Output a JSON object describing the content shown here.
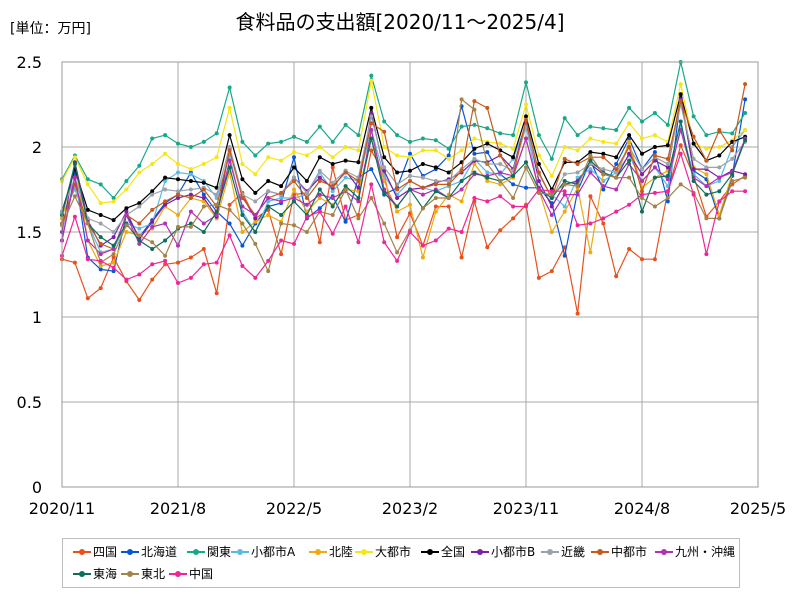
{
  "header": {
    "unit": "[単位：万円]",
    "title": "食料品の支出額[2020/11～2025/4]"
  },
  "chart_data": {
    "type": "line",
    "title": "食料品の支出額[2020/11～2025/4]",
    "ylabel": "[単位：万円]",
    "xlabel": "",
    "ylim": [
      0,
      2.5
    ],
    "yticks": [
      "0",
      "0.5",
      "1",
      "1.5",
      "2",
      "2.5"
    ],
    "x_tick_labels": [
      "2020/11",
      "2021/8",
      "2022/5",
      "2023/2",
      "2023/11",
      "2024/8",
      "2025/5"
    ],
    "grid": true,
    "legend_position": "bottom",
    "x": [
      "2020/11",
      "2020/12",
      "2021/1",
      "2021/2",
      "2021/3",
      "2021/4",
      "2021/5",
      "2021/6",
      "2021/7",
      "2021/8",
      "2021/9",
      "2021/10",
      "2021/11",
      "2021/12",
      "2022/1",
      "2022/2",
      "2022/3",
      "2022/4",
      "2022/5",
      "2022/6",
      "2022/7",
      "2022/8",
      "2022/9",
      "2022/10",
      "2022/11",
      "2022/12",
      "2023/1",
      "2023/2",
      "2023/3",
      "2023/4",
      "2023/5",
      "2023/6",
      "2023/7",
      "2023/8",
      "2023/9",
      "2023/10",
      "2023/11",
      "2023/12",
      "2024/1",
      "2024/2",
      "2024/3",
      "2024/4",
      "2024/5",
      "2024/6",
      "2024/7",
      "2024/8",
      "2024/9",
      "2024/10",
      "2024/11",
      "2024/12",
      "2025/1",
      "2025/2",
      "2025/3",
      "2025/4"
    ],
    "series": [
      {
        "name": "四国",
        "color": "#e8501e",
        "values": [
          1.34,
          1.32,
          1.11,
          1.17,
          1.35,
          1.21,
          1.1,
          1.22,
          1.31,
          1.32,
          1.35,
          1.4,
          1.14,
          1.66,
          1.73,
          1.58,
          1.63,
          1.37,
          1.72,
          1.73,
          1.44,
          1.88,
          1.57,
          1.6,
          1.98,
          1.84,
          1.47,
          1.61,
          1.42,
          1.65,
          1.65,
          1.35,
          1.68,
          1.41,
          1.51,
          1.58,
          1.66,
          1.23,
          1.27,
          1.41,
          1.02,
          1.71,
          1.55,
          1.24,
          1.4,
          1.34,
          1.34,
          1.74,
          2.01,
          1.83,
          1.59,
          1.68,
          1.78,
          1.83
        ]
      },
      {
        "name": "北海道",
        "color": "#0a55d6",
        "values": [
          1.45,
          1.84,
          1.35,
          1.28,
          1.27,
          1.6,
          1.47,
          1.57,
          1.67,
          1.72,
          1.85,
          1.72,
          1.62,
          1.55,
          1.42,
          1.55,
          1.65,
          1.67,
          1.94,
          1.58,
          1.64,
          1.71,
          1.56,
          1.82,
          1.87,
          1.72,
          1.76,
          1.96,
          1.83,
          1.87,
          1.95,
          2.24,
          1.96,
          1.97,
          1.84,
          1.78,
          1.76,
          1.76,
          1.67,
          1.36,
          1.74,
          1.92,
          1.75,
          1.9,
          2.05,
          1.87,
          1.97,
          1.68,
          2.29,
          1.86,
          1.81,
          1.58,
          1.83,
          2.28
        ]
      },
      {
        "name": "関東",
        "color": "#17a889",
        "values": [
          1.81,
          1.95,
          1.81,
          1.78,
          1.7,
          1.8,
          1.89,
          2.05,
          2.07,
          2.02,
          2.0,
          2.03,
          2.08,
          2.35,
          2.03,
          1.95,
          2.02,
          2.03,
          2.06,
          2.03,
          2.12,
          2.03,
          2.13,
          2.07,
          2.42,
          2.15,
          2.07,
          2.03,
          2.05,
          2.04,
          1.99,
          2.12,
          2.13,
          2.11,
          2.08,
          2.07,
          2.38,
          2.07,
          1.93,
          2.17,
          2.07,
          2.12,
          2.11,
          2.1,
          2.23,
          2.15,
          2.2,
          2.13,
          2.5,
          2.18,
          2.07,
          2.09,
          2.08,
          2.2
        ]
      },
      {
        "name": "小都市A",
        "color": "#5bbbe6",
        "values": [
          1.6,
          1.75,
          1.55,
          1.38,
          1.4,
          1.55,
          1.52,
          1.55,
          1.8,
          1.85,
          1.84,
          1.8,
          1.7,
          1.95,
          1.62,
          1.5,
          1.68,
          1.7,
          1.7,
          1.72,
          1.85,
          1.74,
          1.82,
          1.8,
          2.1,
          1.83,
          1.72,
          1.8,
          1.76,
          1.74,
          1.77,
          1.8,
          1.93,
          1.85,
          1.84,
          1.93,
          2.13,
          1.73,
          1.72,
          1.65,
          1.82,
          1.87,
          1.8,
          1.85,
          1.95,
          1.8,
          1.88,
          1.77,
          2.12,
          1.84,
          1.77,
          1.8,
          2.0,
          2.1
        ]
      },
      {
        "name": "北陸",
        "color": "#eeaa10",
        "values": [
          1.58,
          1.9,
          1.45,
          1.3,
          1.32,
          1.5,
          1.48,
          1.52,
          1.65,
          1.6,
          1.7,
          1.68,
          1.58,
          1.85,
          1.5,
          1.56,
          1.6,
          1.56,
          1.75,
          1.62,
          1.7,
          1.66,
          1.75,
          1.74,
          2.05,
          1.8,
          1.62,
          1.66,
          1.35,
          1.62,
          1.72,
          1.68,
          1.9,
          1.8,
          1.78,
          1.82,
          2.05,
          1.75,
          1.5,
          1.62,
          1.76,
          1.38,
          1.84,
          1.82,
          2.03,
          1.76,
          1.82,
          1.86,
          2.31,
          1.88,
          1.84,
          1.6,
          1.84,
          2.05
        ]
      },
      {
        "name": "大都市",
        "color": "#f5e614",
        "values": [
          1.8,
          1.94,
          1.78,
          1.67,
          1.68,
          1.75,
          1.85,
          1.9,
          1.96,
          1.9,
          1.87,
          1.9,
          1.94,
          2.23,
          1.9,
          1.84,
          1.94,
          1.92,
          1.97,
          1.95,
          2.0,
          1.94,
          2.0,
          1.98,
          2.39,
          2.0,
          1.95,
          1.94,
          1.98,
          1.98,
          1.93,
          1.98,
          2.05,
          2.03,
          2.02,
          1.99,
          2.25,
          1.95,
          1.83,
          2.0,
          1.98,
          2.05,
          2.03,
          2.02,
          2.14,
          2.05,
          2.07,
          2.03,
          2.37,
          2.02,
          1.99,
          2.0,
          2.04,
          2.1
        ]
      },
      {
        "name": "全国",
        "color": "#000000",
        "values": [
          1.62,
          1.87,
          1.63,
          1.6,
          1.57,
          1.64,
          1.67,
          1.74,
          1.82,
          1.81,
          1.8,
          1.79,
          1.76,
          2.07,
          1.81,
          1.73,
          1.8,
          1.77,
          1.88,
          1.8,
          1.94,
          1.9,
          1.92,
          1.91,
          2.23,
          1.94,
          1.85,
          1.86,
          1.9,
          1.88,
          1.85,
          1.91,
          1.99,
          2.02,
          1.98,
          1.94,
          2.18,
          1.9,
          1.75,
          1.91,
          1.91,
          1.97,
          1.96,
          1.94,
          2.07,
          1.96,
          2.0,
          2.01,
          2.31,
          2.02,
          1.92,
          1.95,
          2.03,
          2.06
        ]
      },
      {
        "name": "小都市B",
        "color": "#7c1fa2",
        "values": [
          1.5,
          1.91,
          1.57,
          1.42,
          1.47,
          1.62,
          1.46,
          1.56,
          1.66,
          1.7,
          1.72,
          1.7,
          1.59,
          1.99,
          1.71,
          1.58,
          1.74,
          1.72,
          1.82,
          1.74,
          1.82,
          1.76,
          1.86,
          1.76,
          2.2,
          1.86,
          1.7,
          1.75,
          1.76,
          1.79,
          1.81,
          1.85,
          1.92,
          1.91,
          1.95,
          1.87,
          2.15,
          1.8,
          1.65,
          1.78,
          1.8,
          1.9,
          1.84,
          1.82,
          1.96,
          1.84,
          1.92,
          1.88,
          2.28,
          1.87,
          1.87,
          1.82,
          1.86,
          1.84
        ]
      },
      {
        "name": "近畿",
        "color": "#9aa3ac",
        "values": [
          1.62,
          1.82,
          1.58,
          1.55,
          1.5,
          1.6,
          1.65,
          1.72,
          1.75,
          1.74,
          1.75,
          1.76,
          1.72,
          2.0,
          1.72,
          1.68,
          1.74,
          1.72,
          1.82,
          1.73,
          1.86,
          1.79,
          1.86,
          1.82,
          2.18,
          1.88,
          1.78,
          1.83,
          1.82,
          1.8,
          1.8,
          1.87,
          1.93,
          1.9,
          1.9,
          1.86,
          2.12,
          1.84,
          1.7,
          1.84,
          1.85,
          1.9,
          1.87,
          1.85,
          2.0,
          1.87,
          1.94,
          1.9,
          2.25,
          1.93,
          1.88,
          1.88,
          1.93,
          2.03
        ]
      },
      {
        "name": "中都市",
        "color": "#c75a1a",
        "values": [
          1.55,
          1.78,
          1.55,
          1.43,
          1.4,
          1.6,
          1.55,
          1.63,
          1.68,
          1.72,
          1.7,
          1.75,
          1.65,
          1.98,
          1.7,
          1.6,
          1.7,
          1.73,
          1.8,
          1.7,
          1.8,
          1.77,
          1.85,
          1.8,
          2.14,
          2.09,
          1.75,
          1.8,
          1.76,
          1.78,
          1.78,
          1.86,
          2.27,
          2.23,
          1.95,
          1.83,
          2.16,
          1.85,
          1.7,
          1.93,
          1.9,
          1.94,
          1.94,
          1.87,
          2.0,
          1.74,
          1.95,
          1.93,
          2.27,
          2.06,
          1.92,
          2.1,
          1.98,
          2.37
        ]
      },
      {
        "name": "九州・沖縄",
        "color": "#b431b4",
        "values": [
          1.45,
          1.82,
          1.45,
          1.37,
          1.4,
          1.6,
          1.43,
          1.53,
          1.55,
          1.42,
          1.62,
          1.55,
          1.6,
          1.92,
          1.65,
          1.6,
          1.7,
          1.68,
          1.7,
          1.66,
          1.72,
          1.7,
          1.74,
          1.68,
          2.1,
          1.75,
          1.65,
          1.75,
          1.72,
          1.75,
          1.7,
          1.75,
          1.84,
          1.83,
          1.85,
          1.83,
          2.05,
          1.75,
          1.6,
          1.72,
          1.72,
          1.85,
          1.77,
          1.75,
          1.9,
          1.8,
          1.88,
          1.81,
          2.1,
          1.82,
          1.77,
          1.82,
          1.85,
          2.05
        ]
      },
      {
        "name": "東海",
        "color": "#0f6e5a",
        "values": [
          1.6,
          1.9,
          1.55,
          1.47,
          1.42,
          1.55,
          1.45,
          1.4,
          1.45,
          1.52,
          1.55,
          1.5,
          1.62,
          1.88,
          1.6,
          1.5,
          1.65,
          1.6,
          1.68,
          1.6,
          1.75,
          1.65,
          1.77,
          1.7,
          2.05,
          1.73,
          1.65,
          1.75,
          1.64,
          1.74,
          1.7,
          1.8,
          1.85,
          1.82,
          1.8,
          1.83,
          1.91,
          1.75,
          1.7,
          1.8,
          1.78,
          1.92,
          1.85,
          1.82,
          1.92,
          1.62,
          1.82,
          1.83,
          2.15,
          1.8,
          1.72,
          1.74,
          1.84,
          2.04
        ]
      },
      {
        "name": "東北",
        "color": "#a48348",
        "values": [
          1.54,
          1.71,
          1.55,
          1.32,
          1.37,
          1.54,
          1.48,
          1.44,
          1.36,
          1.53,
          1.53,
          1.65,
          1.66,
          1.63,
          1.55,
          1.43,
          1.27,
          1.55,
          1.54,
          1.5,
          1.62,
          1.6,
          1.75,
          1.58,
          1.7,
          1.55,
          1.38,
          1.51,
          1.64,
          1.7,
          1.7,
          2.28,
          2.22,
          1.9,
          1.8,
          1.7,
          1.88,
          1.73,
          1.72,
          1.78,
          1.77,
          1.95,
          1.84,
          1.82,
          1.82,
          1.7,
          1.65,
          1.7,
          1.78,
          1.73,
          1.58,
          1.58,
          1.8,
          1.82
        ]
      },
      {
        "name": "中国",
        "color": "#f0259a",
        "values": [
          1.36,
          1.59,
          1.34,
          1.33,
          1.29,
          1.22,
          1.25,
          1.31,
          1.33,
          1.2,
          1.23,
          1.31,
          1.32,
          1.48,
          1.3,
          1.23,
          1.33,
          1.45,
          1.43,
          1.59,
          1.62,
          1.49,
          1.65,
          1.44,
          1.78,
          1.44,
          1.33,
          1.5,
          1.42,
          1.45,
          1.52,
          1.5,
          1.7,
          1.68,
          1.71,
          1.65,
          1.65,
          1.75,
          1.74,
          1.74,
          1.54,
          1.55,
          1.58,
          1.62,
          1.66,
          1.72,
          1.73,
          1.74,
          1.96,
          1.72,
          1.37,
          1.68,
          1.74,
          1.74
        ]
      }
    ]
  }
}
